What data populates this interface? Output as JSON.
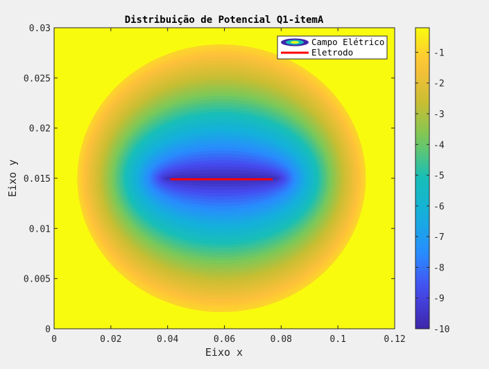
{
  "chart_data": {
    "type": "contourf",
    "title": "Distribuição de Potencial Q1-itemA",
    "xlabel": "Eixo x",
    "ylabel": "Eixo y",
    "xlim": [
      0,
      0.12
    ],
    "ylim": [
      0,
      0.03
    ],
    "xticks": [
      "0",
      "0.02",
      "0.04",
      "0.06",
      "0.08",
      "0.1",
      "0.12"
    ],
    "yticks": [
      "0",
      "0.005",
      "0.01",
      "0.015",
      "0.02",
      "0.025",
      "0.03"
    ],
    "colorbar": {
      "range": [
        -10,
        -0.2
      ],
      "ticks": [
        "-1",
        "-2",
        "-3",
        "-4",
        "-5",
        "-6",
        "-7",
        "-8",
        "-9",
        "-10"
      ],
      "colormap": "parula"
    },
    "electrode": {
      "x": [
        0.041,
        0.077
      ],
      "y": 0.0149,
      "color": "#ff0000"
    },
    "potential_center": {
      "x": 0.059,
      "y": 0.015
    },
    "grid": false,
    "legend": {
      "placement": "top-right",
      "entries": [
        "Campo Elétrico",
        "Eletrodo"
      ]
    }
  }
}
